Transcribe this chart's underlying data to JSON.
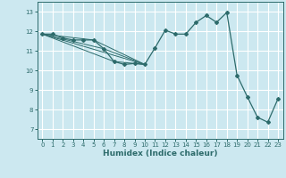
{
  "title": "",
  "xlabel": "Humidex (Indice chaleur)",
  "ylabel": "",
  "bg_color": "#cce8f0",
  "line_color": "#2d6b6b",
  "grid_color": "#ffffff",
  "grid_minor_color": "#e8f8fc",
  "xlim": [
    -0.5,
    23.5
  ],
  "ylim": [
    6.5,
    13.5
  ],
  "xticks": [
    0,
    1,
    2,
    3,
    4,
    5,
    6,
    7,
    8,
    9,
    10,
    11,
    12,
    13,
    14,
    15,
    16,
    17,
    18,
    19,
    20,
    21,
    22,
    23
  ],
  "yticks": [
    7,
    8,
    9,
    10,
    11,
    12,
    13
  ],
  "series": [
    [
      0,
      11.85
    ],
    [
      1,
      11.85
    ],
    [
      2,
      11.65
    ],
    [
      3,
      11.55
    ],
    [
      4,
      11.55
    ],
    [
      5,
      11.55
    ],
    [
      6,
      11.1
    ],
    [
      7,
      10.45
    ],
    [
      8,
      10.3
    ],
    [
      9,
      10.35
    ],
    [
      10,
      10.3
    ],
    [
      11,
      11.15
    ],
    [
      12,
      12.05
    ],
    [
      13,
      11.85
    ],
    [
      14,
      11.85
    ],
    [
      15,
      12.45
    ],
    [
      16,
      12.8
    ],
    [
      17,
      12.45
    ],
    [
      18,
      12.95
    ],
    [
      19,
      9.75
    ],
    [
      20,
      8.65
    ],
    [
      21,
      7.6
    ],
    [
      22,
      7.35
    ],
    [
      23,
      8.55
    ]
  ],
  "fan_lines": [
    [
      [
        0,
        10
      ],
      [
        11.85,
        10.3
      ]
    ],
    [
      [
        0,
        5,
        10
      ],
      [
        11.85,
        11.55,
        10.3
      ]
    ],
    [
      [
        0,
        6,
        10
      ],
      [
        11.85,
        11.1,
        10.3
      ]
    ],
    [
      [
        0,
        7,
        10
      ],
      [
        11.85,
        10.45,
        10.3
      ]
    ]
  ],
  "marker_points": [
    [
      0,
      11.85
    ],
    [
      1,
      11.85
    ],
    [
      2,
      11.65
    ],
    [
      3,
      11.55
    ],
    [
      4,
      11.55
    ],
    [
      5,
      11.55
    ],
    [
      6,
      11.1
    ],
    [
      7,
      10.45
    ],
    [
      8,
      10.3
    ],
    [
      9,
      10.35
    ],
    [
      10,
      10.3
    ],
    [
      11,
      11.15
    ],
    [
      12,
      12.05
    ],
    [
      13,
      11.85
    ],
    [
      14,
      11.85
    ],
    [
      15,
      12.45
    ],
    [
      16,
      12.8
    ],
    [
      17,
      12.45
    ],
    [
      18,
      12.95
    ],
    [
      19,
      9.75
    ],
    [
      20,
      8.65
    ],
    [
      21,
      7.6
    ],
    [
      22,
      7.35
    ],
    [
      23,
      8.55
    ]
  ]
}
